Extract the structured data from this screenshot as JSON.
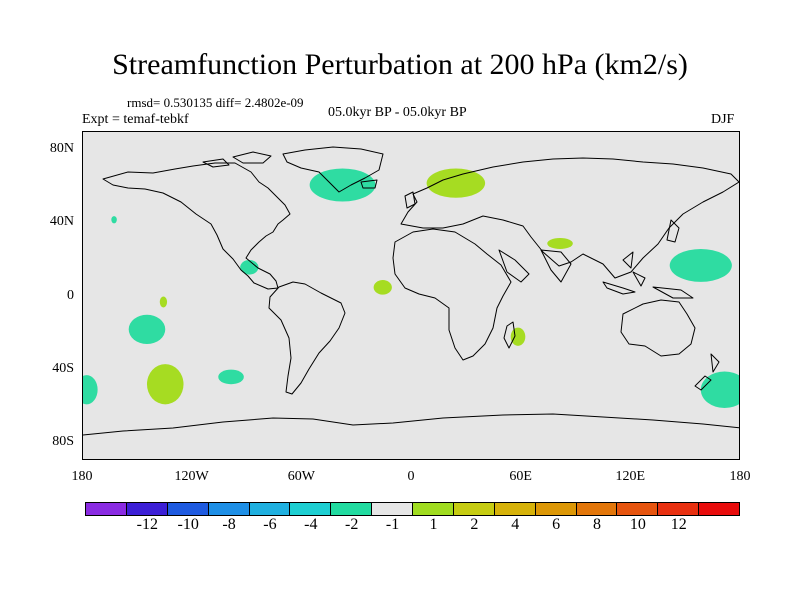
{
  "title": "Streamfunction Perturbation at 200 hPa (km2/s)",
  "stats": "rmsd= 0.530135 diff= 2.4802e-09",
  "experiment": "Expt = temaf-tebkf",
  "period": "05.0kyr BP - 05.0kyr BP",
  "season": "DJF",
  "map": {
    "lon_range": [
      -180,
      180
    ],
    "lat_range": [
      -90,
      90
    ],
    "x_ticks": [
      {
        "lon": -180,
        "label": "180"
      },
      {
        "lon": -120,
        "label": "120W"
      },
      {
        "lon": -60,
        "label": "60W"
      },
      {
        "lon": 0,
        "label": "0"
      },
      {
        "lon": 60,
        "label": "60E"
      },
      {
        "lon": 120,
        "label": "120E"
      },
      {
        "lon": 180,
        "label": "180"
      }
    ],
    "y_ticks": [
      {
        "lat": 80,
        "label": "80N"
      },
      {
        "lat": 40,
        "label": "40N"
      },
      {
        "lat": 0,
        "label": "0"
      },
      {
        "lat": -40,
        "label": "40S"
      },
      {
        "lat": -80,
        "label": "80S"
      }
    ],
    "anomaly_regions": [
      {
        "name": "north-atlantic-greenland",
        "lon": -38,
        "lat": 61,
        "rlon": 18,
        "rlat": 9,
        "bin": "-2 to -1"
      },
      {
        "name": "scandinavia",
        "lon": 24,
        "lat": 62,
        "rlon": 16,
        "rlat": 8,
        "bin": "1 to 2"
      },
      {
        "name": "north-pacific-west",
        "lon": 158,
        "lat": 17,
        "rlon": 17,
        "rlat": 9,
        "bin": "-2 to -1"
      },
      {
        "name": "gulf-of-mexico",
        "lon": -89,
        "lat": 16,
        "rlon": 5,
        "rlat": 4,
        "bin": "-2 to -1"
      },
      {
        "name": "west-africa",
        "lon": -16,
        "lat": 5,
        "rlon": 5,
        "rlat": 4,
        "bin": "1 to 2"
      },
      {
        "name": "india",
        "lon": 81,
        "lat": 29,
        "rlon": 7,
        "rlat": 3,
        "bin": "1 to 2"
      },
      {
        "name": "madagascar-east",
        "lon": 58,
        "lat": -22,
        "rlon": 4,
        "rlat": 5,
        "bin": "1 to 2"
      },
      {
        "name": "south-pacific-tropical",
        "lon": -145,
        "lat": -18,
        "rlon": 10,
        "rlat": 8,
        "bin": "-2 to -1"
      },
      {
        "name": "equatorial-pacific",
        "lon": -136,
        "lat": -3,
        "rlon": 2,
        "rlat": 3,
        "bin": "1 to 2"
      },
      {
        "name": "south-pacific-mid",
        "lon": -135,
        "lat": -48,
        "rlon": 10,
        "rlat": 11,
        "bin": "1 to 2"
      },
      {
        "name": "southeast-pacific",
        "lon": -99,
        "lat": -44,
        "rlon": 7,
        "rlat": 4,
        "bin": "-2 to -1"
      },
      {
        "name": "south-pacific-dateline-west",
        "lon": -178,
        "lat": -51,
        "rlon": 6,
        "rlat": 8,
        "bin": "-2 to -1"
      },
      {
        "name": "southwest-pacific-east",
        "lon": 171,
        "lat": -51,
        "rlon": 13,
        "rlat": 10,
        "bin": "-2 to -1"
      },
      {
        "name": "hawaii-spot",
        "lon": -163,
        "lat": 42,
        "rlon": 1.5,
        "rlat": 2,
        "bin": "-2 to -1"
      }
    ]
  },
  "colorbar": {
    "colors": [
      "#8a2be2",
      "#3c1fd6",
      "#1e5ae0",
      "#1e8fe6",
      "#1fb0e0",
      "#1ecfd2",
      "#21dba0",
      "#e6e6e6",
      "#a0dc20",
      "#c6cc12",
      "#d6b20a",
      "#dc9706",
      "#e2760a",
      "#e6540e",
      "#e83010",
      "#e80c0c"
    ],
    "labels": [
      "-12",
      "-10",
      "-8",
      "-6",
      "-4",
      "-2",
      "-1",
      "1",
      "2",
      "4",
      "6",
      "8",
      "10",
      "12"
    ],
    "bin_colors": {
      "-2 to -1": "#2fdca2",
      "1 to 2": "#a6dc22"
    }
  }
}
